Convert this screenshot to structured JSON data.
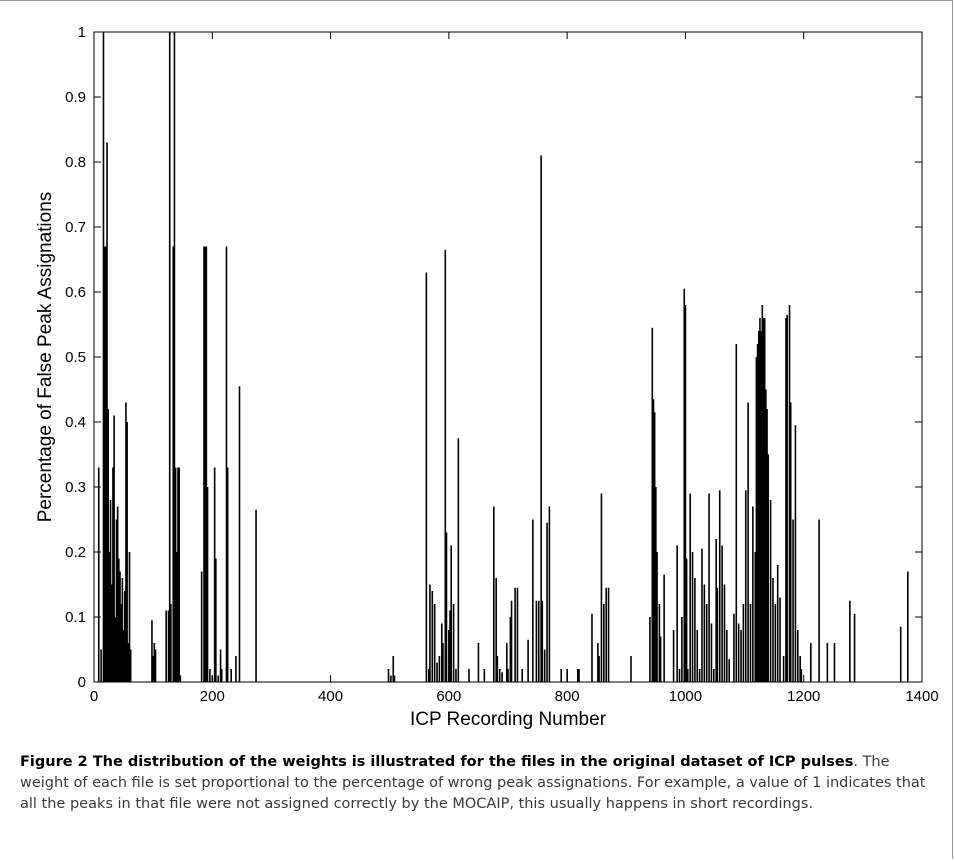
{
  "chart_data": {
    "type": "bar",
    "title": "",
    "xlabel": "ICP Recording Number",
    "ylabel": "Percentage of False Peak Assignations",
    "xlim": [
      0,
      1400
    ],
    "ylim": [
      0,
      1
    ],
    "xticks": [
      0,
      200,
      400,
      600,
      800,
      1000,
      1200,
      1400
    ],
    "yticks": [
      0,
      0.1,
      0.2,
      0.3,
      0.4,
      0.5,
      0.6,
      0.7,
      0.8,
      0.9,
      1
    ],
    "xtick_labels": [
      "0",
      "200",
      "400",
      "600",
      "800",
      "1000",
      "1200",
      "1400"
    ],
    "ytick_labels": [
      "0",
      "0.1",
      "0.2",
      "0.3",
      "0.4",
      "0.5",
      "0.6",
      "0.7",
      "0.8",
      "0.9",
      "1"
    ],
    "grid": false,
    "legend": "none",
    "color": "#000000",
    "points": [
      [
        8,
        0.33
      ],
      [
        12,
        0.05
      ],
      [
        16,
        1.0
      ],
      [
        18,
        0.67
      ],
      [
        20,
        0.67
      ],
      [
        22,
        0.83
      ],
      [
        24,
        0.42
      ],
      [
        26,
        0.2
      ],
      [
        28,
        0.28
      ],
      [
        30,
        0.15
      ],
      [
        32,
        0.33
      ],
      [
        34,
        0.41
      ],
      [
        36,
        0.1
      ],
      [
        38,
        0.25
      ],
      [
        40,
        0.27
      ],
      [
        42,
        0.19
      ],
      [
        44,
        0.17
      ],
      [
        46,
        0.12
      ],
      [
        48,
        0.16
      ],
      [
        50,
        0.08
      ],
      [
        52,
        0.14
      ],
      [
        54,
        0.43
      ],
      [
        56,
        0.4
      ],
      [
        58,
        0.06
      ],
      [
        60,
        0.2
      ],
      [
        62,
        0.05
      ],
      [
        98,
        0.095
      ],
      [
        100,
        0.04
      ],
      [
        102,
        0.06
      ],
      [
        104,
        0.05
      ],
      [
        122,
        0.11
      ],
      [
        126,
        0.11
      ],
      [
        128,
        1.0
      ],
      [
        130,
        0.12
      ],
      [
        134,
        0.67
      ],
      [
        136,
        1.0
      ],
      [
        138,
        0.33
      ],
      [
        140,
        0.2
      ],
      [
        142,
        0.33
      ],
      [
        144,
        0.33
      ],
      [
        146,
        0.01
      ],
      [
        182,
        0.17
      ],
      [
        186,
        0.67
      ],
      [
        188,
        0.67
      ],
      [
        190,
        0.67
      ],
      [
        192,
        0.3
      ],
      [
        196,
        0.02
      ],
      [
        200,
        0.01
      ],
      [
        204,
        0.33
      ],
      [
        206,
        0.19
      ],
      [
        210,
        0.01
      ],
      [
        214,
        0.05
      ],
      [
        216,
        0.02
      ],
      [
        224,
        0.67
      ],
      [
        226,
        0.33
      ],
      [
        232,
        0.02
      ],
      [
        240,
        0.04
      ],
      [
        246,
        0.455
      ],
      [
        274,
        0.265
      ],
      [
        498,
        0.02
      ],
      [
        502,
        0.01
      ],
      [
        506,
        0.04
      ],
      [
        508,
        0.01
      ],
      [
        562,
        0.63
      ],
      [
        566,
        0.02
      ],
      [
        568,
        0.15
      ],
      [
        572,
        0.14
      ],
      [
        576,
        0.12
      ],
      [
        580,
        0.03
      ],
      [
        584,
        0.04
      ],
      [
        588,
        0.09
      ],
      [
        590,
        0.06
      ],
      [
        594,
        0.665
      ],
      [
        596,
        0.23
      ],
      [
        600,
        0.08
      ],
      [
        602,
        0.11
      ],
      [
        604,
        0.21
      ],
      [
        608,
        0.12
      ],
      [
        612,
        0.02
      ],
      [
        616,
        0.375
      ],
      [
        634,
        0.02
      ],
      [
        650,
        0.06
      ],
      [
        660,
        0.02
      ],
      [
        676,
        0.27
      ],
      [
        680,
        0.16
      ],
      [
        682,
        0.04
      ],
      [
        686,
        0.02
      ],
      [
        690,
        0.015
      ],
      [
        698,
        0.06
      ],
      [
        700,
        0.02
      ],
      [
        704,
        0.1
      ],
      [
        706,
        0.125
      ],
      [
        712,
        0.145
      ],
      [
        716,
        0.145
      ],
      [
        724,
        0.02
      ],
      [
        734,
        0.065
      ],
      [
        742,
        0.25
      ],
      [
        748,
        0.125
      ],
      [
        752,
        0.125
      ],
      [
        756,
        0.81
      ],
      [
        758,
        0.125
      ],
      [
        762,
        0.05
      ],
      [
        766,
        0.245
      ],
      [
        770,
        0.27
      ],
      [
        790,
        0.02
      ],
      [
        800,
        0.02
      ],
      [
        818,
        0.02
      ],
      [
        820,
        0.02
      ],
      [
        842,
        0.105
      ],
      [
        852,
        0.06
      ],
      [
        854,
        0.04
      ],
      [
        858,
        0.29
      ],
      [
        862,
        0.12
      ],
      [
        866,
        0.145
      ],
      [
        870,
        0.145
      ],
      [
        908,
        0.04
      ],
      [
        940,
        0.1
      ],
      [
        944,
        0.545
      ],
      [
        946,
        0.435
      ],
      [
        948,
        0.415
      ],
      [
        950,
        0.3
      ],
      [
        952,
        0.2
      ],
      [
        956,
        0.12
      ],
      [
        958,
        0.07
      ],
      [
        964,
        0.165
      ],
      [
        980,
        0.08
      ],
      [
        986,
        0.21
      ],
      [
        990,
        0.02
      ],
      [
        994,
        0.1
      ],
      [
        998,
        0.605
      ],
      [
        1000,
        0.58
      ],
      [
        1002,
        0.19
      ],
      [
        1004,
        0.02
      ],
      [
        1008,
        0.29
      ],
      [
        1012,
        0.2
      ],
      [
        1016,
        0.16
      ],
      [
        1020,
        0.08
      ],
      [
        1024,
        0.02
      ],
      [
        1028,
        0.205
      ],
      [
        1032,
        0.15
      ],
      [
        1036,
        0.12
      ],
      [
        1040,
        0.29
      ],
      [
        1044,
        0.09
      ],
      [
        1048,
        0.02
      ],
      [
        1052,
        0.22
      ],
      [
        1054,
        0.145
      ],
      [
        1058,
        0.295
      ],
      [
        1062,
        0.21
      ],
      [
        1066,
        0.15
      ],
      [
        1070,
        0.08
      ],
      [
        1074,
        0.035
      ],
      [
        1082,
        0.105
      ],
      [
        1086,
        0.52
      ],
      [
        1090,
        0.09
      ],
      [
        1094,
        0.08
      ],
      [
        1098,
        0.12
      ],
      [
        1102,
        0.295
      ],
      [
        1106,
        0.43
      ],
      [
        1110,
        0.12
      ],
      [
        1114,
        0.27
      ],
      [
        1118,
        0.2
      ],
      [
        1120,
        0.5
      ],
      [
        1122,
        0.52
      ],
      [
        1124,
        0.54
      ],
      [
        1126,
        0.56
      ],
      [
        1128,
        0.54
      ],
      [
        1130,
        0.58
      ],
      [
        1132,
        0.56
      ],
      [
        1134,
        0.56
      ],
      [
        1136,
        0.45
      ],
      [
        1138,
        0.42
      ],
      [
        1140,
        0.35
      ],
      [
        1144,
        0.28
      ],
      [
        1148,
        0.16
      ],
      [
        1152,
        0.12
      ],
      [
        1156,
        0.18
      ],
      [
        1160,
        0.13
      ],
      [
        1166,
        0.04
      ],
      [
        1170,
        0.56
      ],
      [
        1172,
        0.565
      ],
      [
        1176,
        0.58
      ],
      [
        1178,
        0.43
      ],
      [
        1182,
        0.25
      ],
      [
        1186,
        0.395
      ],
      [
        1190,
        0.08
      ],
      [
        1194,
        0.04
      ],
      [
        1196,
        0.02
      ],
      [
        1212,
        0.06
      ],
      [
        1226,
        0.25
      ],
      [
        1240,
        0.06
      ],
      [
        1252,
        0.06
      ],
      [
        1278,
        0.125
      ],
      [
        1286,
        0.105
      ],
      [
        1364,
        0.085
      ],
      [
        1376,
        0.17
      ]
    ]
  },
  "caption": {
    "label": "Figure 2 The distribution of the weights is illustrated for the files in the original dataset of ICP pulses",
    "text": ". The weight of each file is set proportional to the percentage of wrong peak assignations. For example, a value of 1 indicates that all the peaks in that file were not assigned correctly by the MOCAIP, this usually happens in short recordings."
  }
}
